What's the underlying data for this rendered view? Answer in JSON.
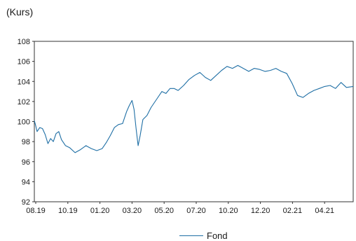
{
  "chart_data": {
    "type": "line",
    "title": "",
    "unit_label": "(Kurs)",
    "xlabel": "",
    "ylabel": "",
    "x_ticks": [
      "08.19",
      "10.19",
      "01.20",
      "03.20",
      "05.20",
      "07.20",
      "10.20",
      "12.20",
      "02.21",
      "04.21"
    ],
    "ylim": [
      92,
      108
    ],
    "y_ticks": [
      92,
      94,
      96,
      98,
      100,
      102,
      104,
      106,
      108
    ],
    "grid": false,
    "legend_position": "bottom",
    "colors": {
      "series": "#1f6fa5",
      "axis": "#333333"
    },
    "series": [
      {
        "name": "Fond",
        "x_index": [
          0,
          0.1,
          0.2,
          0.3,
          0.4,
          0.6,
          0.8,
          1.0,
          1.2,
          1.4,
          1.6,
          1.8,
          2.0,
          2.3,
          2.6,
          3.0,
          3.4,
          3.8,
          4.2,
          4.6,
          5.0,
          5.3,
          5.6,
          5.9,
          6.2,
          6.5,
          6.8,
          7.0,
          7.2,
          7.35,
          7.5,
          7.65,
          7.8,
          8.0,
          8.3,
          8.6,
          9.0,
          9.4,
          9.7,
          10.0,
          10.3,
          10.6,
          11.0,
          11.4,
          11.8,
          12.2,
          12.6,
          13.0,
          13.4,
          13.8,
          14.2,
          14.6,
          15.0,
          15.4,
          15.8,
          16.2,
          16.6,
          17.0,
          17.4,
          17.8,
          18.2,
          18.6,
          19.0,
          19.4,
          19.8,
          20.2,
          20.6,
          21.0,
          21.4,
          21.8,
          22.2,
          22.6,
          23.0,
          23.5
        ],
        "values": [
          100.1,
          99.6,
          99.0,
          99.2,
          99.4,
          99.3,
          98.7,
          97.8,
          98.3,
          98.0,
          98.8,
          99.0,
          98.2,
          97.6,
          97.4,
          96.9,
          97.2,
          97.6,
          97.3,
          97.1,
          97.3,
          97.9,
          98.6,
          99.4,
          99.7,
          99.8,
          101.0,
          101.6,
          102.1,
          101.2,
          99.3,
          97.6,
          98.6,
          100.2,
          100.6,
          101.4,
          102.2,
          103.0,
          102.8,
          103.3,
          103.3,
          103.1,
          103.6,
          104.2,
          104.6,
          104.9,
          104.4,
          104.1,
          104.6,
          105.1,
          105.5,
          105.3,
          105.6,
          105.3,
          105.0,
          105.3,
          105.2,
          105.0,
          105.1,
          105.3,
          105.0,
          104.8,
          103.8,
          102.6,
          102.4,
          102.8,
          103.1,
          103.3,
          103.5,
          103.6,
          103.3,
          103.9,
          103.4,
          103.5
        ]
      }
    ]
  }
}
